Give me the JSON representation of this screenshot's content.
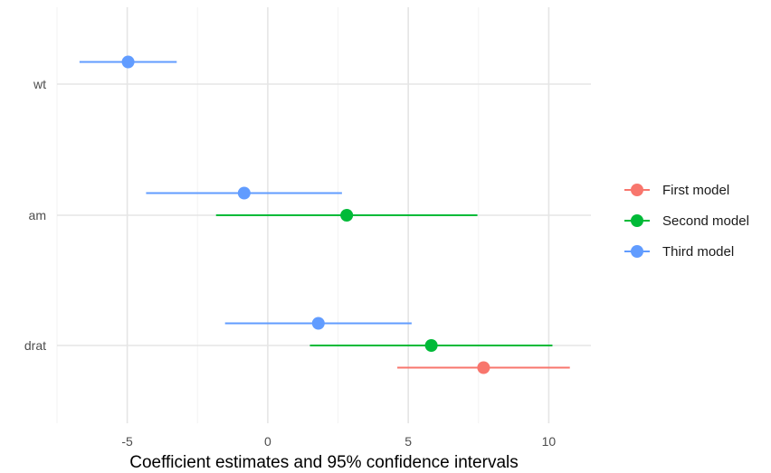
{
  "chart_data": {
    "type": "coefficient-plot",
    "xlabel": "Coefficient estimates and 95% confidence intervals",
    "ylabel": "",
    "xlim": [
      -7.5,
      11.5
    ],
    "x_ticks": [
      -5,
      0,
      5,
      10
    ],
    "x_tick_labels": [
      "-5",
      "0",
      "5",
      "10"
    ],
    "terms": [
      "wt",
      "am",
      "drat"
    ],
    "grid": true,
    "legend_position": "right",
    "series": [
      {
        "name": "First model",
        "color": "#F8766D",
        "points": [
          {
            "term": "drat",
            "estimate": 7.68,
            "low": 4.61,
            "high": 10.75
          }
        ]
      },
      {
        "name": "Second model",
        "color": "#00BA38",
        "points": [
          {
            "term": "am",
            "estimate": 2.81,
            "low": -1.84,
            "high": 7.46
          },
          {
            "term": "drat",
            "estimate": 5.82,
            "low": 1.5,
            "high": 10.13
          }
        ]
      },
      {
        "name": "Third model",
        "color": "#619CFF",
        "points": [
          {
            "term": "wt",
            "estimate": -4.97,
            "low": -6.7,
            "high": -3.24
          },
          {
            "term": "am",
            "estimate": -0.84,
            "low": -4.33,
            "high": 2.64
          },
          {
            "term": "drat",
            "estimate": 1.8,
            "low": -1.52,
            "high": 5.12
          }
        ]
      }
    ]
  }
}
